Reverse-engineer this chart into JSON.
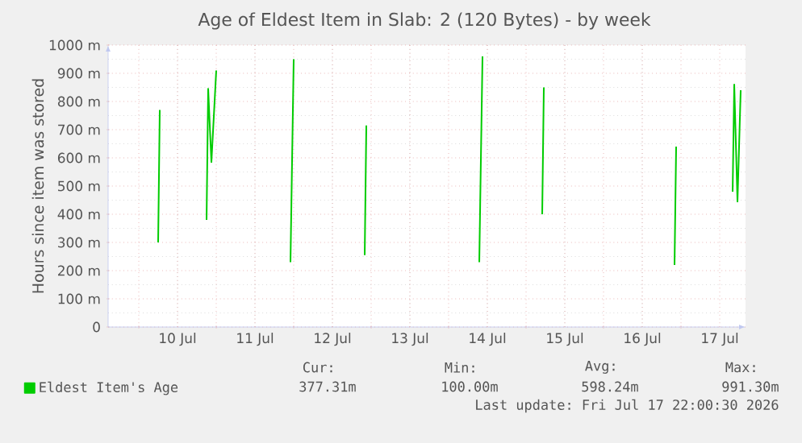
{
  "chart_data": {
    "type": "line",
    "title": "Age of Eldest Item in Slab: 2 (120 Bytes) - by week",
    "ylabel": "Hours since item was stored",
    "xlim": [
      "2026-07-09T14:30",
      "2026-07-17T20:00"
    ],
    "ylim": [
      0,
      1000
    ],
    "xticks": [
      {
        "value": "2026-07-10T00:00",
        "label": null
      },
      {
        "value": "2026-07-10T12:00",
        "label": "10 Jul"
      },
      {
        "value": "2026-07-11T00:00",
        "label": null
      },
      {
        "value": "2026-07-11T12:00",
        "label": "11 Jul"
      },
      {
        "value": "2026-07-12T00:00",
        "label": null
      },
      {
        "value": "2026-07-12T12:00",
        "label": "12 Jul"
      },
      {
        "value": "2026-07-13T00:00",
        "label": null
      },
      {
        "value": "2026-07-13T12:00",
        "label": "13 Jul"
      },
      {
        "value": "2026-07-14T00:00",
        "label": null
      },
      {
        "value": "2026-07-14T12:00",
        "label": "14 Jul"
      },
      {
        "value": "2026-07-15T00:00",
        "label": null
      },
      {
        "value": "2026-07-15T12:00",
        "label": "15 Jul"
      },
      {
        "value": "2026-07-16T00:00",
        "label": null
      },
      {
        "value": "2026-07-16T12:00",
        "label": "16 Jul"
      },
      {
        "value": "2026-07-17T00:00",
        "label": null
      },
      {
        "value": "2026-07-17T12:00",
        "label": "17 Jul"
      }
    ],
    "yticks": [
      {
        "value": 0,
        "label": "0"
      },
      {
        "value": 100,
        "label": "100 m"
      },
      {
        "value": 200,
        "label": "200 m"
      },
      {
        "value": 300,
        "label": "300 m"
      },
      {
        "value": 400,
        "label": "400 m"
      },
      {
        "value": 500,
        "label": "500 m"
      },
      {
        "value": 600,
        "label": "600 m"
      },
      {
        "value": 700,
        "label": "700 m"
      },
      {
        "value": 800,
        "label": "800 m"
      },
      {
        "value": 900,
        "label": "900 m"
      },
      {
        "value": 1000,
        "label": "1000 m"
      }
    ],
    "grid": true,
    "legend": "bottom",
    "series": [
      {
        "name": "Eldest Item's Age",
        "color": "#00cc00",
        "x": [
          "2026-07-10T06:00",
          "2026-07-10T06:30",
          "2026-07-10T12:00",
          "2026-07-10T21:00",
          "2026-07-10T21:30",
          "2026-07-10T22:30",
          "2026-07-11T00:00",
          "2026-07-11T12:00",
          "2026-07-11T23:00",
          "2026-07-12T00:00",
          "2026-07-12T12:00",
          "2026-07-12T22:00",
          "2026-07-12T22:30",
          "2026-07-13T12:00",
          "2026-07-14T09:30",
          "2026-07-14T10:30",
          "2026-07-14T20:00",
          "2026-07-15T05:00",
          "2026-07-15T05:30",
          "2026-07-15T12:00",
          "2026-07-16T22:00",
          "2026-07-16T22:30",
          "2026-07-17T06:00",
          "2026-07-17T16:00",
          "2026-07-17T16:30",
          "2026-07-17T17:30",
          "2026-07-17T18:30"
        ],
        "values": [
          300,
          770,
          null,
          380,
          845,
          585,
          910,
          null,
          230,
          950,
          null,
          255,
          715,
          null,
          230,
          960,
          null,
          400,
          850,
          null,
          220,
          640,
          null,
          480,
          860,
          445,
          840
        ]
      }
    ],
    "annotations": [
      "Cur:",
      "377.31m",
      "Min:",
      "100.00m",
      "Avg:",
      "598.24m",
      "Max:",
      "991.30m",
      "Last update: Fri Jul 17 22:00:30 2026"
    ]
  }
}
